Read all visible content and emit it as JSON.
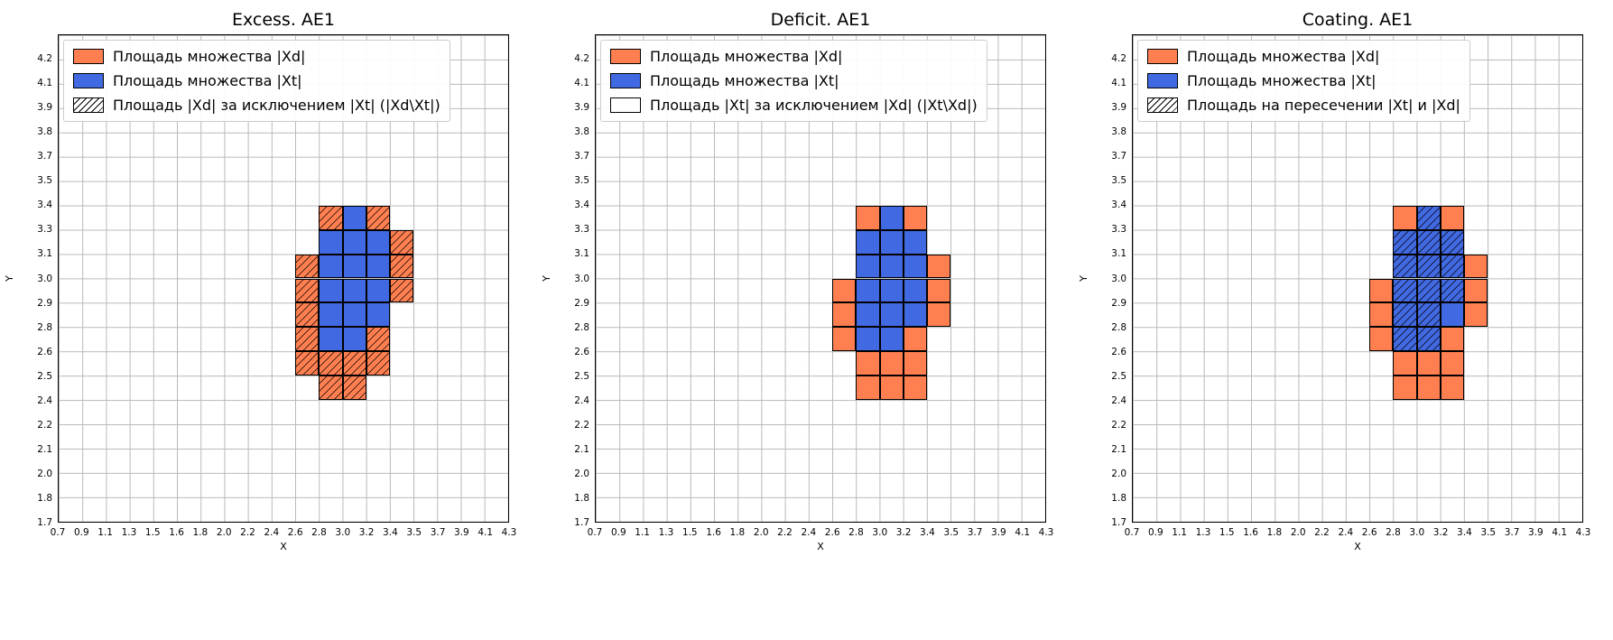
{
  "colors": {
    "orange": "#ff7f50",
    "blue": "#4169e1",
    "white": "#ffffff",
    "grid": "#b9b9b9",
    "hatch": "#000000"
  },
  "axes": {
    "xlabel": "X",
    "ylabel": "Y",
    "x_ticks": [
      "0.7",
      "0.9",
      "1.1",
      "1.3",
      "1.5",
      "1.6",
      "1.8",
      "2.0",
      "2.2",
      "2.4",
      "2.6",
      "2.8",
      "3.0",
      "3.2",
      "3.4",
      "3.5",
      "3.7",
      "3.9",
      "4.1",
      "4.3"
    ],
    "y_ticks": [
      "1.7",
      "1.8",
      "2.0",
      "2.1",
      "2.2",
      "2.4",
      "2.5",
      "2.6",
      "2.8",
      "2.9",
      "3.0",
      "3.1",
      "3.3",
      "3.4",
      "3.5",
      "3.7",
      "3.8",
      "3.9",
      "4.1",
      "4.2"
    ],
    "grid": true,
    "note_cell_indexing": "cells: ci indexes x_ticks interval [x_ticks[ci], x_ticks[ci+1]], ri indexes y_ticks interval [y_ticks[ri], y_ticks[ri+1]] from bottom"
  },
  "chart_data": [
    {
      "type": "heatmap",
      "title": "Excess. AE1",
      "xlabel": "X",
      "ylabel": "Y",
      "legend": [
        {
          "label": "Площадь множества |Xd|",
          "fill": "orange",
          "hatch": false
        },
        {
          "label": "Площадь множества  |Xt|",
          "fill": "blue",
          "hatch": false
        },
        {
          "label": "Площадь |Xd| за исключением |Xt| (|Xd\\Xt|)",
          "fill": "white",
          "hatch": true
        }
      ],
      "cells": [
        {
          "ci": 12,
          "ri": 12,
          "fill": "blue",
          "hatch": false
        },
        {
          "ci": 11,
          "ri": 11,
          "fill": "blue",
          "hatch": false
        },
        {
          "ci": 12,
          "ri": 11,
          "fill": "blue",
          "hatch": false
        },
        {
          "ci": 13,
          "ri": 11,
          "fill": "blue",
          "hatch": false
        },
        {
          "ci": 11,
          "ri": 10,
          "fill": "blue",
          "hatch": false
        },
        {
          "ci": 12,
          "ri": 10,
          "fill": "blue",
          "hatch": false
        },
        {
          "ci": 13,
          "ri": 10,
          "fill": "blue",
          "hatch": false
        },
        {
          "ci": 11,
          "ri": 9,
          "fill": "blue",
          "hatch": false
        },
        {
          "ci": 12,
          "ri": 9,
          "fill": "blue",
          "hatch": false
        },
        {
          "ci": 13,
          "ri": 9,
          "fill": "blue",
          "hatch": false
        },
        {
          "ci": 11,
          "ri": 8,
          "fill": "blue",
          "hatch": false
        },
        {
          "ci": 12,
          "ri": 8,
          "fill": "blue",
          "hatch": false
        },
        {
          "ci": 13,
          "ri": 8,
          "fill": "blue",
          "hatch": false
        },
        {
          "ci": 11,
          "ri": 7,
          "fill": "blue",
          "hatch": false
        },
        {
          "ci": 12,
          "ri": 7,
          "fill": "blue",
          "hatch": false
        },
        {
          "ci": 11,
          "ri": 12,
          "fill": "orange",
          "hatch": true
        },
        {
          "ci": 13,
          "ri": 12,
          "fill": "orange",
          "hatch": true
        },
        {
          "ci": 14,
          "ri": 11,
          "fill": "orange",
          "hatch": true
        },
        {
          "ci": 10,
          "ri": 10,
          "fill": "orange",
          "hatch": true
        },
        {
          "ci": 14,
          "ri": 10,
          "fill": "orange",
          "hatch": true
        },
        {
          "ci": 10,
          "ri": 9,
          "fill": "orange",
          "hatch": true
        },
        {
          "ci": 14,
          "ri": 9,
          "fill": "orange",
          "hatch": true
        },
        {
          "ci": 10,
          "ri": 8,
          "fill": "orange",
          "hatch": true
        },
        {
          "ci": 10,
          "ri": 7,
          "fill": "orange",
          "hatch": true
        },
        {
          "ci": 13,
          "ri": 7,
          "fill": "orange",
          "hatch": true
        },
        {
          "ci": 10,
          "ri": 6,
          "fill": "orange",
          "hatch": true
        },
        {
          "ci": 11,
          "ri": 6,
          "fill": "orange",
          "hatch": true
        },
        {
          "ci": 12,
          "ri": 6,
          "fill": "orange",
          "hatch": true
        },
        {
          "ci": 13,
          "ri": 6,
          "fill": "orange",
          "hatch": true
        },
        {
          "ci": 11,
          "ri": 5,
          "fill": "orange",
          "hatch": true
        },
        {
          "ci": 12,
          "ri": 5,
          "fill": "orange",
          "hatch": true
        }
      ]
    },
    {
      "type": "heatmap",
      "title": "Deficit. AE1",
      "xlabel": "X",
      "ylabel": "Y",
      "legend": [
        {
          "label": "Площадь множества |Xd|",
          "fill": "orange",
          "hatch": false
        },
        {
          "label": "Площадь множества  |Xt|",
          "fill": "blue",
          "hatch": false
        },
        {
          "label": "Площадь |Xt| за исключением |Xd| (|Xt\\Xd|)",
          "fill": "white",
          "hatch": false
        }
      ],
      "cells": [
        {
          "ci": 12,
          "ri": 12,
          "fill": "blue",
          "hatch": false
        },
        {
          "ci": 11,
          "ri": 11,
          "fill": "blue",
          "hatch": false
        },
        {
          "ci": 12,
          "ri": 11,
          "fill": "blue",
          "hatch": false
        },
        {
          "ci": 13,
          "ri": 11,
          "fill": "blue",
          "hatch": false
        },
        {
          "ci": 11,
          "ri": 10,
          "fill": "blue",
          "hatch": false
        },
        {
          "ci": 12,
          "ri": 10,
          "fill": "blue",
          "hatch": false
        },
        {
          "ci": 13,
          "ri": 10,
          "fill": "blue",
          "hatch": false
        },
        {
          "ci": 11,
          "ri": 9,
          "fill": "blue",
          "hatch": false
        },
        {
          "ci": 12,
          "ri": 9,
          "fill": "blue",
          "hatch": false
        },
        {
          "ci": 13,
          "ri": 9,
          "fill": "blue",
          "hatch": false
        },
        {
          "ci": 11,
          "ri": 8,
          "fill": "blue",
          "hatch": false
        },
        {
          "ci": 12,
          "ri": 8,
          "fill": "blue",
          "hatch": false
        },
        {
          "ci": 13,
          "ri": 8,
          "fill": "blue",
          "hatch": false
        },
        {
          "ci": 11,
          "ri": 7,
          "fill": "blue",
          "hatch": false
        },
        {
          "ci": 12,
          "ri": 7,
          "fill": "blue",
          "hatch": false
        },
        {
          "ci": 11,
          "ri": 12,
          "fill": "orange",
          "hatch": false
        },
        {
          "ci": 13,
          "ri": 12,
          "fill": "orange",
          "hatch": false
        },
        {
          "ci": 14,
          "ri": 10,
          "fill": "orange",
          "hatch": false
        },
        {
          "ci": 10,
          "ri": 9,
          "fill": "orange",
          "hatch": false
        },
        {
          "ci": 14,
          "ri": 9,
          "fill": "orange",
          "hatch": false
        },
        {
          "ci": 10,
          "ri": 8,
          "fill": "orange",
          "hatch": false
        },
        {
          "ci": 14,
          "ri": 8,
          "fill": "orange",
          "hatch": false
        },
        {
          "ci": 10,
          "ri": 7,
          "fill": "orange",
          "hatch": false
        },
        {
          "ci": 13,
          "ri": 7,
          "fill": "orange",
          "hatch": false
        },
        {
          "ci": 11,
          "ri": 6,
          "fill": "orange",
          "hatch": false
        },
        {
          "ci": 12,
          "ri": 6,
          "fill": "orange",
          "hatch": false
        },
        {
          "ci": 13,
          "ri": 6,
          "fill": "orange",
          "hatch": false
        },
        {
          "ci": 11,
          "ri": 5,
          "fill": "orange",
          "hatch": false
        },
        {
          "ci": 12,
          "ri": 5,
          "fill": "orange",
          "hatch": false
        },
        {
          "ci": 13,
          "ri": 5,
          "fill": "orange",
          "hatch": false
        }
      ]
    },
    {
      "type": "heatmap",
      "title": "Coating. AE1",
      "xlabel": "X",
      "ylabel": "Y",
      "legend": [
        {
          "label": "Площадь множества |Xd|",
          "fill": "orange",
          "hatch": false
        },
        {
          "label": "Площадь множества  |Xt|",
          "fill": "blue",
          "hatch": false
        },
        {
          "label": "Площадь на пересечении |Xt| и |Xd|",
          "fill": "white",
          "hatch": true
        }
      ],
      "cells": [
        {
          "ci": 11,
          "ri": 12,
          "fill": "orange",
          "hatch": false
        },
        {
          "ci": 13,
          "ri": 12,
          "fill": "orange",
          "hatch": false
        },
        {
          "ci": 14,
          "ri": 10,
          "fill": "orange",
          "hatch": false
        },
        {
          "ci": 10,
          "ri": 9,
          "fill": "orange",
          "hatch": false
        },
        {
          "ci": 14,
          "ri": 9,
          "fill": "orange",
          "hatch": false
        },
        {
          "ci": 10,
          "ri": 8,
          "fill": "orange",
          "hatch": false
        },
        {
          "ci": 14,
          "ri": 8,
          "fill": "orange",
          "hatch": false
        },
        {
          "ci": 10,
          "ri": 7,
          "fill": "orange",
          "hatch": false
        },
        {
          "ci": 13,
          "ri": 7,
          "fill": "orange",
          "hatch": false
        },
        {
          "ci": 11,
          "ri": 6,
          "fill": "orange",
          "hatch": false
        },
        {
          "ci": 12,
          "ri": 6,
          "fill": "orange",
          "hatch": false
        },
        {
          "ci": 13,
          "ri": 6,
          "fill": "orange",
          "hatch": false
        },
        {
          "ci": 11,
          "ri": 5,
          "fill": "orange",
          "hatch": false
        },
        {
          "ci": 12,
          "ri": 5,
          "fill": "orange",
          "hatch": false
        },
        {
          "ci": 13,
          "ri": 5,
          "fill": "orange",
          "hatch": false
        },
        {
          "ci": 12,
          "ri": 12,
          "fill": "blue",
          "hatch": true
        },
        {
          "ci": 11,
          "ri": 11,
          "fill": "blue",
          "hatch": true
        },
        {
          "ci": 12,
          "ri": 11,
          "fill": "blue",
          "hatch": true
        },
        {
          "ci": 13,
          "ri": 11,
          "fill": "blue",
          "hatch": true
        },
        {
          "ci": 11,
          "ri": 10,
          "fill": "blue",
          "hatch": true
        },
        {
          "ci": 12,
          "ri": 10,
          "fill": "blue",
          "hatch": true
        },
        {
          "ci": 13,
          "ri": 10,
          "fill": "blue",
          "hatch": true
        },
        {
          "ci": 11,
          "ri": 9,
          "fill": "blue",
          "hatch": true
        },
        {
          "ci": 12,
          "ri": 9,
          "fill": "blue",
          "hatch": true
        },
        {
          "ci": 13,
          "ri": 9,
          "fill": "blue",
          "hatch": true
        },
        {
          "ci": 11,
          "ri": 8,
          "fill": "blue",
          "hatch": true
        },
        {
          "ci": 12,
          "ri": 8,
          "fill": "blue",
          "hatch": true
        },
        {
          "ci": 13,
          "ri": 8,
          "fill": "blue",
          "hatch": false
        },
        {
          "ci": 11,
          "ri": 7,
          "fill": "blue",
          "hatch": true
        },
        {
          "ci": 12,
          "ri": 7,
          "fill": "blue",
          "hatch": true
        }
      ]
    }
  ]
}
